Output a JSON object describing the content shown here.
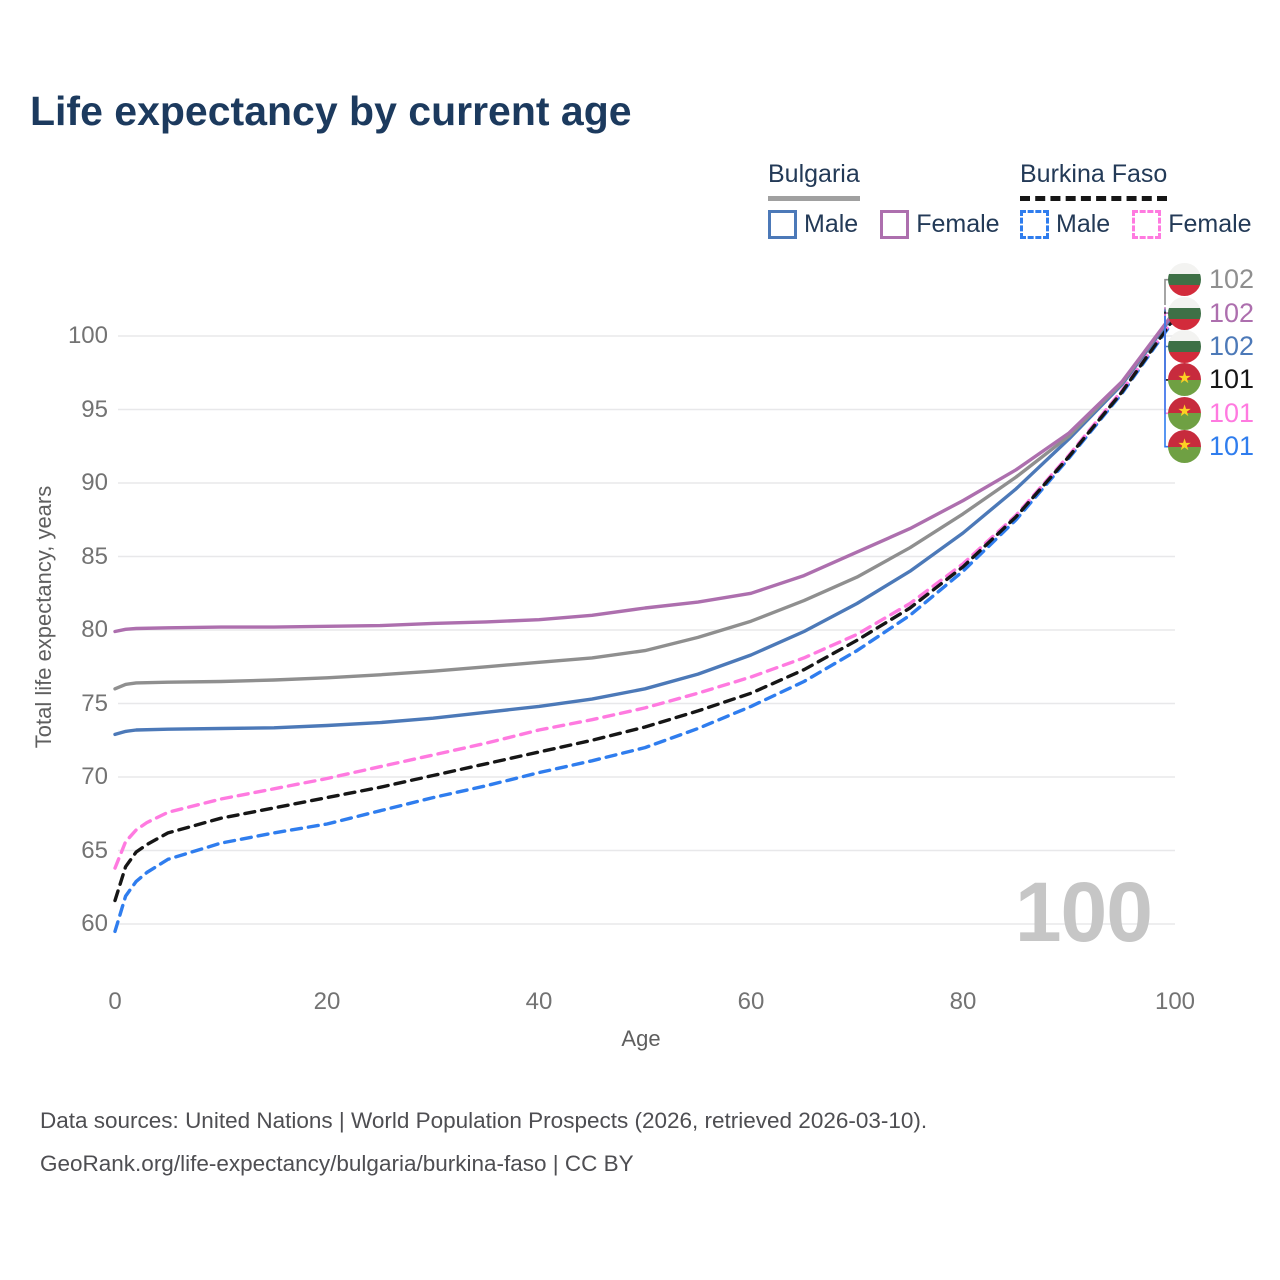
{
  "page": {
    "title": "Life expectancy by current age"
  },
  "legend": {
    "groups": [
      {
        "label": "Bulgaria",
        "line_style": "solid",
        "underline_color": "#a0a0a0",
        "items": [
          {
            "label": "Male",
            "color": "#4c79b8",
            "dash": false
          },
          {
            "label": "Female",
            "color": "#ad6fae",
            "dash": false
          }
        ]
      },
      {
        "label": "Burkina Faso",
        "line_style": "dashed",
        "underline_color": "#161616",
        "items": [
          {
            "label": "Male",
            "color": "#2f7dee",
            "dash": true
          },
          {
            "label": "Female",
            "color": "#ff7ae0",
            "dash": true
          }
        ]
      }
    ]
  },
  "chart_data": {
    "type": "line",
    "title": "Life expectancy by current age",
    "xlabel": "Age",
    "ylabel": "Total life expectancy, years",
    "xlim": [
      0,
      100
    ],
    "ylim": [
      60,
      100
    ],
    "xticks": [
      0,
      20,
      40,
      60,
      80,
      100
    ],
    "yticks": [
      60,
      65,
      70,
      75,
      80,
      85,
      90,
      95,
      100
    ],
    "grid": "horizontal",
    "legend_position": "top-right",
    "series": [
      {
        "id": "burkina-faso-male",
        "name": "Burkina Faso — Male",
        "country": "Burkina Faso",
        "sex": "Male",
        "color": "#2f7dee",
        "dash": true,
        "end_label": "101",
        "points": [
          [
            0,
            59.5
          ],
          [
            1,
            61.9
          ],
          [
            2,
            62.9
          ],
          [
            3,
            63.5
          ],
          [
            5,
            64.4
          ],
          [
            10,
            65.5
          ],
          [
            15,
            66.2
          ],
          [
            20,
            66.8
          ],
          [
            25,
            67.7
          ],
          [
            30,
            68.6
          ],
          [
            35,
            69.4
          ],
          [
            40,
            70.3
          ],
          [
            45,
            71.1
          ],
          [
            50,
            72.0
          ],
          [
            55,
            73.3
          ],
          [
            60,
            74.8
          ],
          [
            65,
            76.5
          ],
          [
            70,
            78.6
          ],
          [
            75,
            81.0
          ],
          [
            80,
            84.0
          ],
          [
            85,
            87.5
          ],
          [
            90,
            91.7
          ],
          [
            95,
            96.1
          ],
          [
            100,
            101.2
          ]
        ]
      },
      {
        "id": "burkina-faso-female",
        "name": "Burkina Faso — Female",
        "country": "Burkina Faso",
        "sex": "Female",
        "color": "#ff7ae0",
        "dash": true,
        "end_label": "101",
        "points": [
          [
            0,
            63.8
          ],
          [
            1,
            65.6
          ],
          [
            2,
            66.4
          ],
          [
            3,
            66.9
          ],
          [
            5,
            67.6
          ],
          [
            10,
            68.5
          ],
          [
            15,
            69.2
          ],
          [
            20,
            69.9
          ],
          [
            25,
            70.7
          ],
          [
            30,
            71.5
          ],
          [
            35,
            72.3
          ],
          [
            40,
            73.2
          ],
          [
            45,
            73.9
          ],
          [
            50,
            74.7
          ],
          [
            55,
            75.7
          ],
          [
            60,
            76.8
          ],
          [
            65,
            78.1
          ],
          [
            70,
            79.7
          ],
          [
            75,
            81.8
          ],
          [
            80,
            84.5
          ],
          [
            85,
            87.8
          ],
          [
            90,
            91.9
          ],
          [
            95,
            96.3
          ],
          [
            100,
            101.3
          ]
        ]
      },
      {
        "id": "burkina-faso-both",
        "name": "Burkina Faso — Both sexes",
        "country": "Burkina Faso",
        "sex": "Both",
        "color": "#161616",
        "dash": true,
        "end_label": "101",
        "points": [
          [
            0,
            61.6
          ],
          [
            1,
            63.9
          ],
          [
            2,
            64.9
          ],
          [
            3,
            65.4
          ],
          [
            5,
            66.2
          ],
          [
            10,
            67.2
          ],
          [
            15,
            67.9
          ],
          [
            20,
            68.6
          ],
          [
            25,
            69.3
          ],
          [
            30,
            70.1
          ],
          [
            35,
            70.9
          ],
          [
            40,
            71.7
          ],
          [
            45,
            72.5
          ],
          [
            50,
            73.4
          ],
          [
            55,
            74.5
          ],
          [
            60,
            75.7
          ],
          [
            65,
            77.3
          ],
          [
            70,
            79.3
          ],
          [
            75,
            81.5
          ],
          [
            80,
            84.3
          ],
          [
            85,
            87.7
          ],
          [
            90,
            91.8
          ],
          [
            95,
            96.2
          ],
          [
            100,
            101.3
          ]
        ]
      },
      {
        "id": "bulgaria-male",
        "name": "Bulgaria — Male",
        "country": "Bulgaria",
        "sex": "Male",
        "color": "#4c79b8",
        "dash": false,
        "end_label": "102",
        "points": [
          [
            0,
            72.9
          ],
          [
            1,
            73.1
          ],
          [
            2,
            73.2
          ],
          [
            5,
            73.25
          ],
          [
            10,
            73.3
          ],
          [
            15,
            73.35
          ],
          [
            20,
            73.5
          ],
          [
            25,
            73.7
          ],
          [
            30,
            74.0
          ],
          [
            35,
            74.4
          ],
          [
            40,
            74.8
          ],
          [
            45,
            75.3
          ],
          [
            50,
            76.0
          ],
          [
            55,
            77.0
          ],
          [
            60,
            78.3
          ],
          [
            65,
            79.9
          ],
          [
            70,
            81.8
          ],
          [
            75,
            84.0
          ],
          [
            80,
            86.6
          ],
          [
            85,
            89.6
          ],
          [
            90,
            93.0
          ],
          [
            95,
            96.7
          ],
          [
            100,
            101.6
          ]
        ]
      },
      {
        "id": "bulgaria-both",
        "name": "Bulgaria — Both sexes",
        "country": "Bulgaria",
        "sex": "Both",
        "color": "#8f8f8f",
        "dash": false,
        "end_label": "102",
        "points": [
          [
            0,
            76.0
          ],
          [
            1,
            76.3
          ],
          [
            2,
            76.4
          ],
          [
            5,
            76.45
          ],
          [
            10,
            76.5
          ],
          [
            15,
            76.6
          ],
          [
            20,
            76.75
          ],
          [
            25,
            76.95
          ],
          [
            30,
            77.2
          ],
          [
            35,
            77.5
          ],
          [
            40,
            77.8
          ],
          [
            45,
            78.1
          ],
          [
            50,
            78.6
          ],
          [
            55,
            79.5
          ],
          [
            60,
            80.6
          ],
          [
            65,
            82.0
          ],
          [
            70,
            83.6
          ],
          [
            75,
            85.6
          ],
          [
            80,
            87.9
          ],
          [
            85,
            90.4
          ],
          [
            90,
            93.2
          ],
          [
            95,
            96.8
          ],
          [
            100,
            101.7
          ]
        ]
      },
      {
        "id": "bulgaria-female",
        "name": "Bulgaria — Female",
        "country": "Bulgaria",
        "sex": "Female",
        "color": "#ad6fae",
        "dash": false,
        "end_label": "102",
        "points": [
          [
            0,
            79.9
          ],
          [
            1,
            80.05
          ],
          [
            2,
            80.1
          ],
          [
            5,
            80.15
          ],
          [
            10,
            80.2
          ],
          [
            15,
            80.2
          ],
          [
            20,
            80.25
          ],
          [
            25,
            80.3
          ],
          [
            30,
            80.45
          ],
          [
            35,
            80.55
          ],
          [
            40,
            80.7
          ],
          [
            45,
            81.0
          ],
          [
            50,
            81.5
          ],
          [
            55,
            81.9
          ],
          [
            60,
            82.5
          ],
          [
            65,
            83.7
          ],
          [
            70,
            85.3
          ],
          [
            75,
            86.9
          ],
          [
            80,
            88.8
          ],
          [
            85,
            90.9
          ],
          [
            90,
            93.4
          ],
          [
            95,
            96.9
          ],
          [
            100,
            101.7
          ]
        ]
      }
    ]
  },
  "right_labels": {
    "rows": [
      {
        "value": "102",
        "country": "Bulgaria",
        "series": "bulgaria-both"
      },
      {
        "value": "102",
        "country": "Bulgaria",
        "series": "bulgaria-female"
      },
      {
        "value": "102",
        "country": "Bulgaria",
        "series": "bulgaria-male"
      },
      {
        "value": "101",
        "country": "Burkina Faso",
        "series": "burkina-faso-both"
      },
      {
        "value": "101",
        "country": "Burkina Faso",
        "series": "burkina-faso-female"
      },
      {
        "value": "101",
        "country": "Burkina Faso",
        "series": "burkina-faso-male"
      }
    ]
  },
  "watermark": "100",
  "footer": {
    "line1": "Data sources: United Nations | World Population Prospects (2026, retrieved 2026-03-10).",
    "line2": "GeoRank.org/life-expectancy/bulgaria/burkina-faso | CC BY"
  }
}
